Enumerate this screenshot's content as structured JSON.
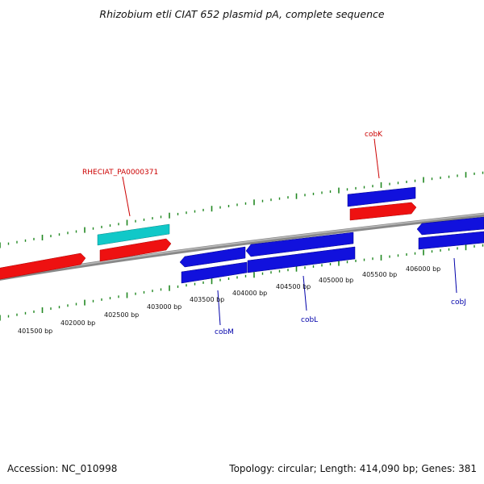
{
  "title": "Rhizobium etli CIAT 652 plasmid pA, complete sequence",
  "footer": {
    "accession": "Accession: NC_010998",
    "summary": "Topology: circular; Length: 414,090 bp; Genes: 381"
  },
  "bp_labels": [
    "401500 bp",
    "402000 bp",
    "402500 bp",
    "403000 bp",
    "403500 bp",
    "404000 bp",
    "404500 bp",
    "405000 bp",
    "405500 bp",
    "406000 bp"
  ],
  "gene_labels": [
    {
      "name": "RHECIAT_PA0000371",
      "color": "#cc0000"
    },
    {
      "name": "cobK",
      "color": "#cc0000"
    },
    {
      "name": "cobM",
      "color": "#0000aa"
    },
    {
      "name": "cobL",
      "color": "#0000aa"
    },
    {
      "name": "cobJ",
      "color": "#0000aa"
    }
  ],
  "colors": {
    "forward_gene": "#ee1111",
    "reverse_gene": "#1111dd",
    "highlight_gene": "#11c8c8",
    "backbone": "#888888",
    "ticks": "#228822"
  }
}
